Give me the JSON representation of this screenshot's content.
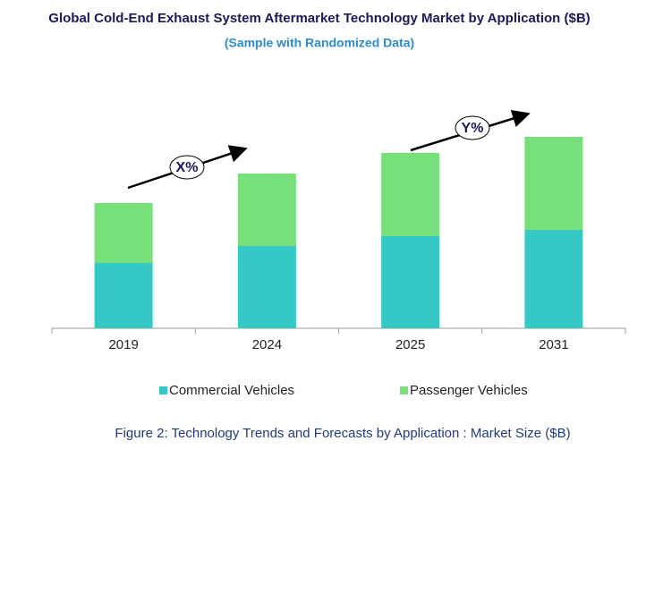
{
  "chart_data": {
    "type": "stacked-bar",
    "title": "Global Cold-End Exhaust System Aftermarket Technology Market by Application ($B)",
    "subtitle": "(Sample with Randomized Data)",
    "caption": "Figure 2: Technology  Trends  and Forecasts by Application : Market Size ($B)",
    "categories": [
      "2019",
      "2024",
      "2025",
      "2031"
    ],
    "series": [
      {
        "name": "Commercial Vehicles",
        "color": "#36c8c4",
        "values": [
          7.3,
          9.2,
          10.3,
          11.0
        ]
      },
      {
        "name": "Passenger Vehicles",
        "color": "#77e07a",
        "values": [
          6.7,
          8.1,
          9.3,
          10.4
        ]
      }
    ],
    "ylim": [
      0,
      25
    ],
    "annotations": [
      "X%",
      "Y%"
    ],
    "legend": "bottom"
  }
}
